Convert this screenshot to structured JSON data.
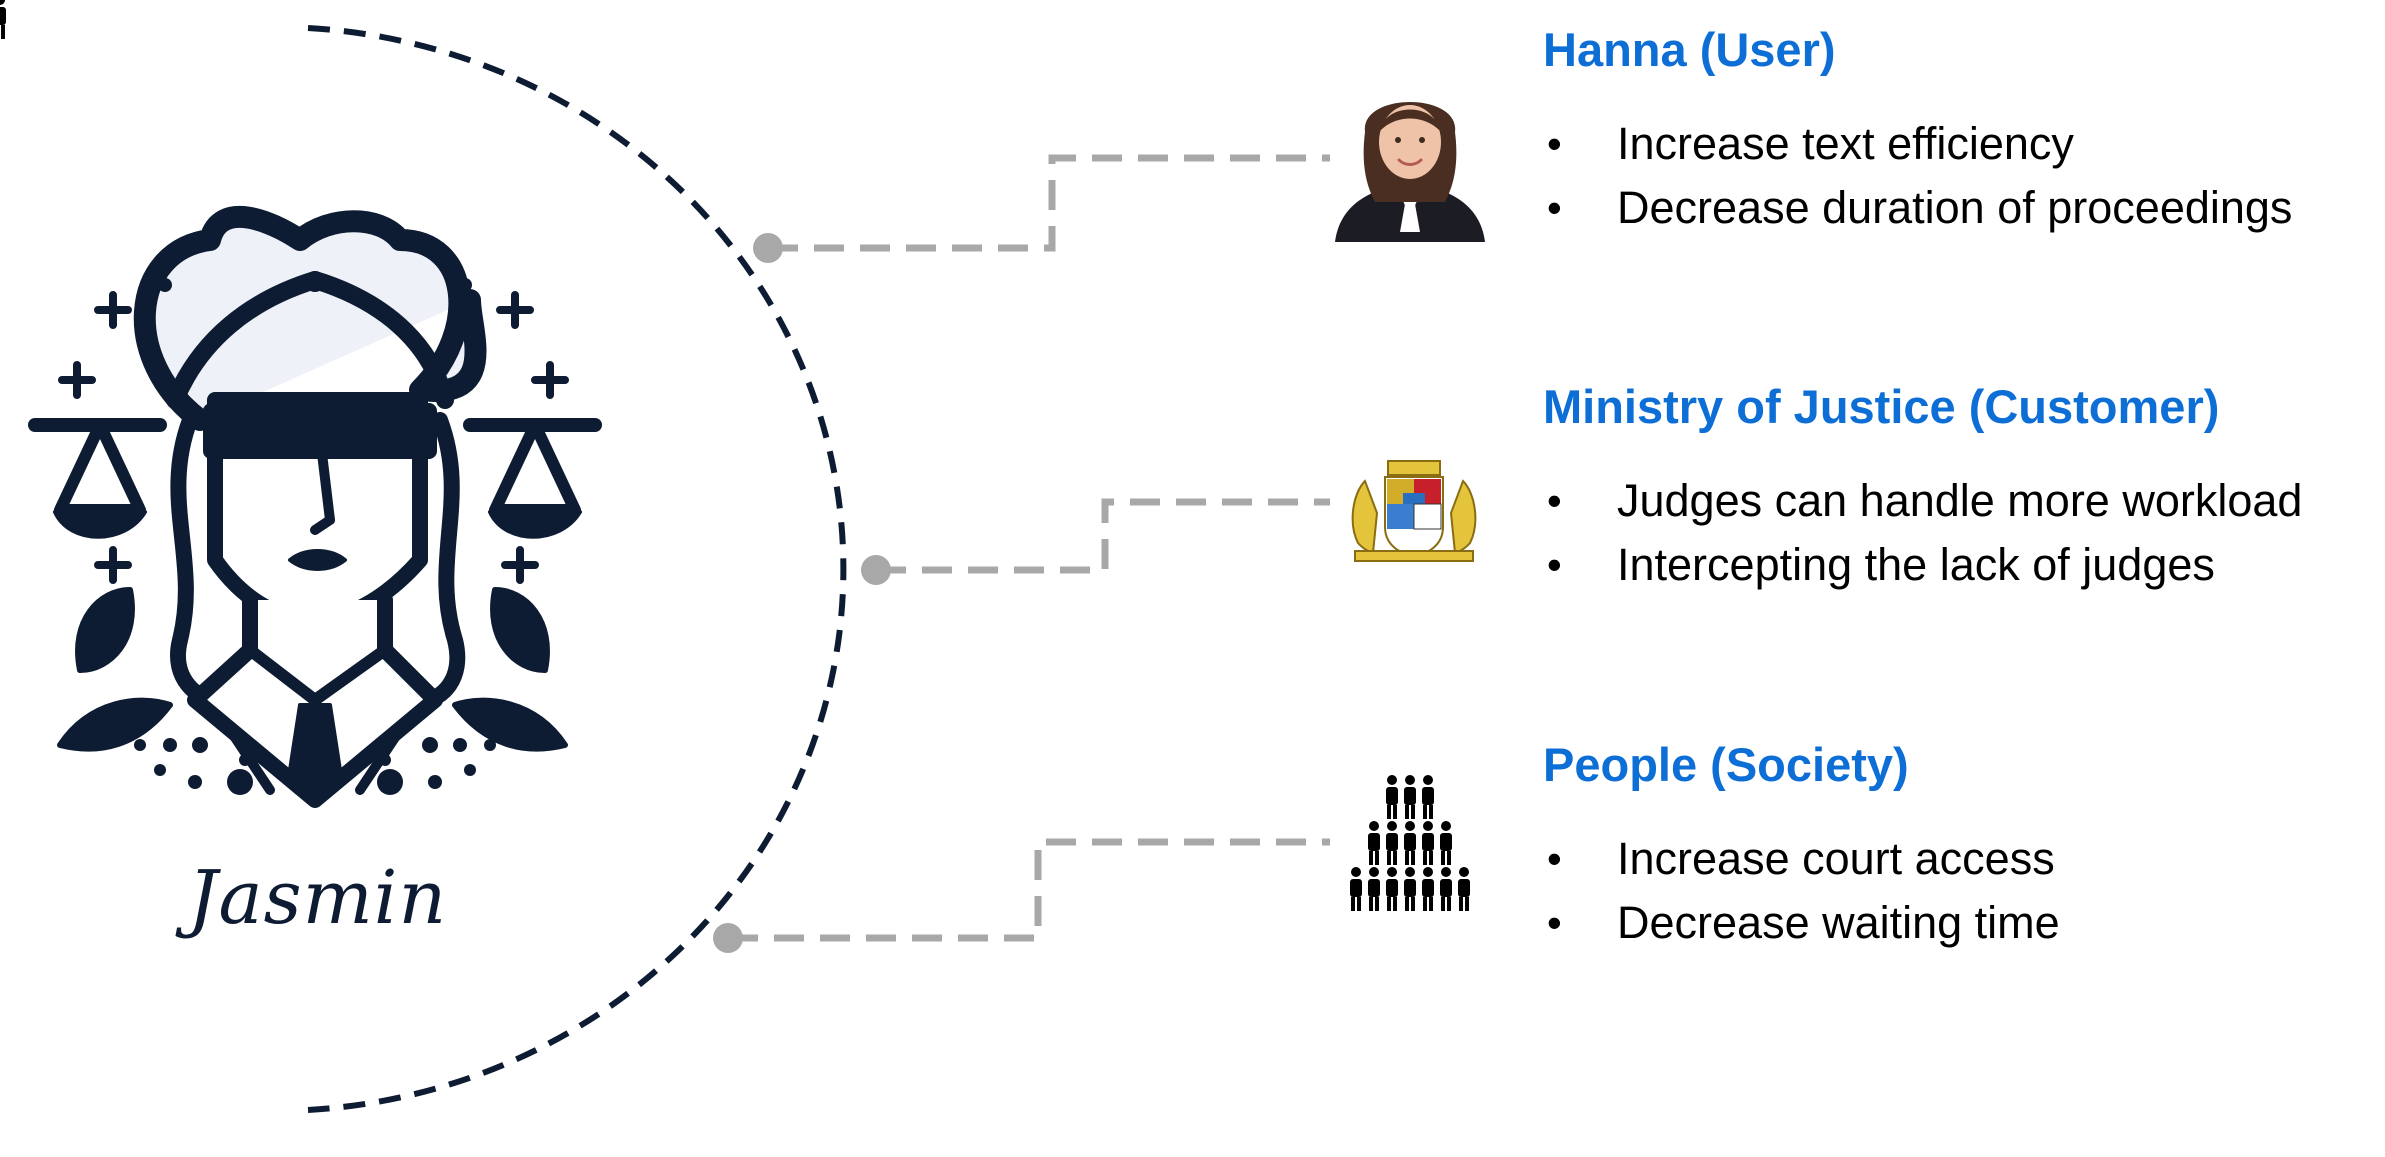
{
  "assistant": {
    "name": "Jasmin",
    "icon": "lady-justice-icon",
    "accent_color": "#0e1c33"
  },
  "stakeholders": [
    {
      "title": "Hanna (User)",
      "icon": "judge-portrait-icon",
      "bullets": [
        "Increase text efficiency",
        "Decrease duration of proceedings"
      ]
    },
    {
      "title": "Ministry of Justice (Customer)",
      "icon": "bavarian-coat-of-arms-icon",
      "bullets": [
        "Judges can handle more workload",
        "Intercepting the lack of judges"
      ]
    },
    {
      "title": "People (Society)",
      "icon": "crowd-pyramid-icon",
      "bullets": [
        "Increase court access",
        "Decrease waiting time"
      ]
    }
  ],
  "colors": {
    "heading": "#0d6fd6",
    "connector": "#a8a8a8",
    "arc": "#0e1c33"
  }
}
